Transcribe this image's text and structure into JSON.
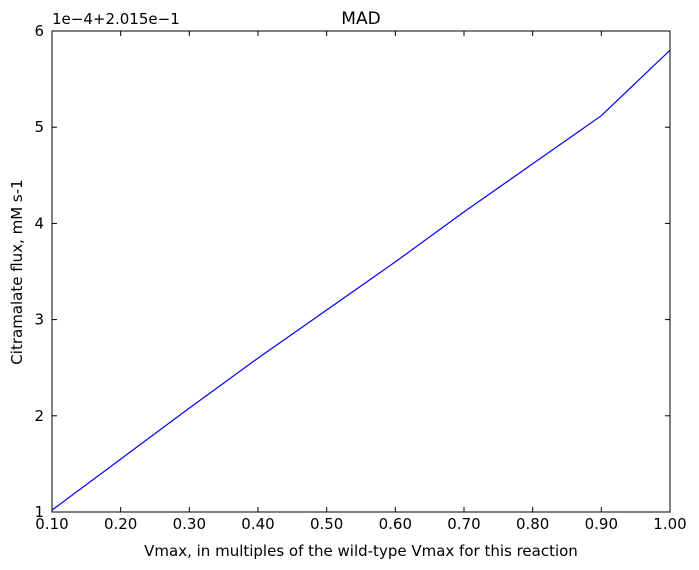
{
  "chart_data": {
    "type": "line",
    "title": "MAD",
    "xlabel": "Vmax, in multiples of the wild-type Vmax for this reaction",
    "ylabel": "Citramalate flux, mM s-1",
    "offset_text": "1e−4+2.015e−1",
    "xlim": [
      0.1,
      1.0
    ],
    "ylim": [
      1,
      6
    ],
    "x_ticks": [
      0.1,
      0.2,
      0.3,
      0.4,
      0.5,
      0.6,
      0.7,
      0.8,
      0.9,
      1.0
    ],
    "x_tick_labels": [
      "0.10",
      "0.20",
      "0.30",
      "0.40",
      "0.50",
      "0.60",
      "0.70",
      "0.80",
      "0.90",
      "1.00"
    ],
    "y_ticks": [
      1,
      2,
      3,
      4,
      5,
      6
    ],
    "y_tick_labels": [
      "1",
      "2",
      "3",
      "4",
      "5",
      "6"
    ],
    "grid": false,
    "series": [
      {
        "color": "#0000ff",
        "x": [
          0.1,
          0.2,
          0.3,
          0.4,
          0.5,
          0.6,
          0.7,
          0.8,
          0.9,
          1.0
        ],
        "y": [
          1.02,
          1.55,
          2.08,
          2.6,
          3.1,
          3.6,
          4.12,
          4.62,
          5.12,
          5.8
        ]
      }
    ]
  }
}
